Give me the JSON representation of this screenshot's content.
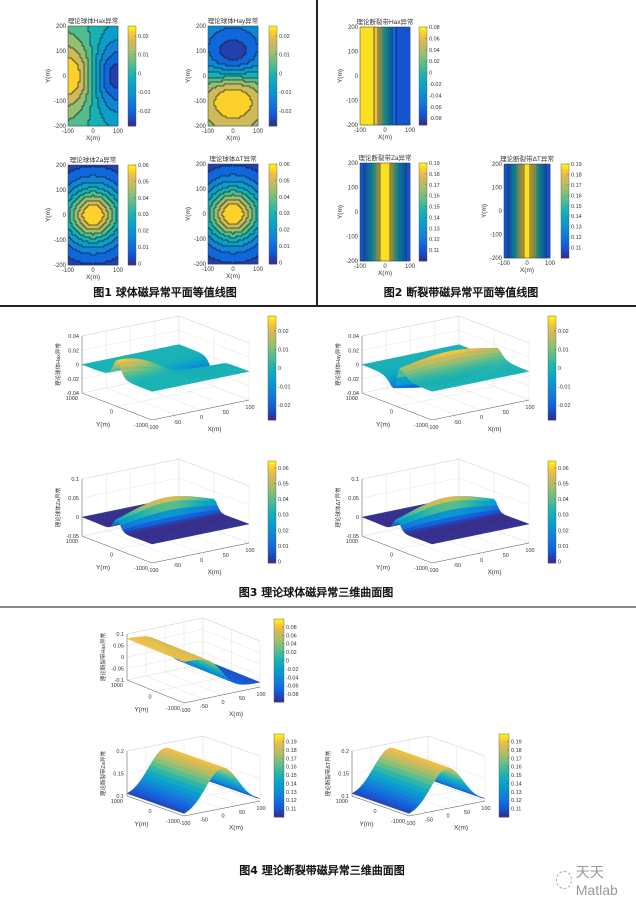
{
  "captions": {
    "fig1": "图1 球体磁异常平面等值线图",
    "fig2": "图2 断裂带磁异常平面等值线图",
    "fig3": "图3 理论球体磁异常三维曲面图",
    "fig4": "图4 理论断裂带磁异常三维曲面图"
  },
  "watermark": "天天Matlab",
  "chart_data": [
    {
      "id": "f1-hax",
      "type": "contour",
      "model": "sphere",
      "field": "Hax",
      "title": "理论球体Hax异常",
      "xlabel": "X(m)",
      "ylabel": "Y(m)",
      "xlim": [
        -100,
        100
      ],
      "ylim": [
        -200,
        200
      ],
      "xticks": [
        -100,
        0,
        100
      ],
      "yticks": [
        200,
        100,
        0,
        -100,
        -200
      ],
      "clim": [
        -0.028,
        0.0253
      ],
      "cticks": [
        0.02,
        0.01,
        0,
        -0.01,
        -0.02
      ]
    },
    {
      "id": "f1-hay",
      "type": "contour",
      "model": "sphere",
      "field": "Hay",
      "title": "理论球体Hay异常",
      "xlabel": "X(m)",
      "ylabel": "Y(m)",
      "xlim": [
        -100,
        100
      ],
      "ylim": [
        -200,
        200
      ],
      "xticks": [
        -100,
        0,
        100
      ],
      "yticks": [
        200,
        100,
        0,
        -100,
        -200
      ],
      "clim": [
        -0.028,
        0.0253
      ],
      "cticks": [
        0.02,
        0.01,
        0,
        -0.01,
        -0.02
      ]
    },
    {
      "id": "f1-za",
      "type": "contour",
      "model": "sphere",
      "field": "Za",
      "title": "理论球体Za异常",
      "xlabel": "X(m)",
      "ylabel": "Y(m)",
      "xlim": [
        -100,
        100
      ],
      "ylim": [
        -200,
        200
      ],
      "xticks": [
        -100,
        0,
        100
      ],
      "yticks": [
        200,
        100,
        0,
        -100,
        -200
      ],
      "clim": [
        -0.001,
        0.06
      ],
      "cticks": [
        0.06,
        0.05,
        0.04,
        0.03,
        0.02,
        0.01,
        0
      ]
    },
    {
      "id": "f1-dt",
      "type": "contour",
      "model": "sphere",
      "field": "dT",
      "title": "理论球体ΔT异常",
      "xlabel": "X(m)",
      "ylabel": "Y(m)",
      "xlim": [
        -100,
        100
      ],
      "ylim": [
        -200,
        200
      ],
      "xticks": [
        -100,
        0,
        100
      ],
      "yticks": [
        200,
        100,
        0,
        -100,
        -200
      ],
      "clim": [
        -0.001,
        0.06
      ],
      "cticks": [
        0.06,
        0.05,
        0.04,
        0.03,
        0.02,
        0.01,
        0
      ]
    },
    {
      "id": "f2-hax",
      "type": "contour",
      "model": "fault",
      "field": "Hax",
      "title": "理论断裂带Hax异常",
      "xlabel": "X(m)",
      "ylabel": "Y(m)",
      "xlim": [
        -100,
        100
      ],
      "ylim": [
        -200,
        200
      ],
      "xticks": [
        -100,
        0,
        100
      ],
      "yticks": [
        200,
        100,
        0,
        -100,
        -200
      ],
      "clim": [
        -0.092,
        0.08
      ],
      "cticks": [
        0.08,
        0.06,
        0.04,
        0.02,
        0,
        -0.02,
        -0.04,
        -0.06,
        -0.08
      ]
    },
    {
      "id": "f2-za",
      "type": "contour",
      "model": "fault",
      "field": "Za",
      "title": "理论断裂带Za异常",
      "xlabel": "X(m)",
      "ylabel": "Y(m)",
      "xlim": [
        -100,
        100
      ],
      "ylim": [
        -200,
        200
      ],
      "xticks": [
        -100,
        0,
        100
      ],
      "yticks": [
        200,
        100,
        0,
        -100,
        -200
      ],
      "clim": [
        0.1,
        0.19
      ],
      "cticks": [
        0.19,
        0.18,
        0.17,
        0.16,
        0.15,
        0.14,
        0.13,
        0.12,
        0.11
      ]
    },
    {
      "id": "f2-dt",
      "type": "contour",
      "model": "fault",
      "field": "dT",
      "title": "理论断裂带ΔT异常",
      "xlabel": "X(m)",
      "ylabel": "Y(m)",
      "xlim": [
        -100,
        100
      ],
      "ylim": [
        -200,
        200
      ],
      "xticks": [
        -100,
        0,
        100
      ],
      "yticks": [
        200,
        100,
        0,
        -100,
        -200
      ],
      "clim": [
        0.1,
        0.19
      ],
      "cticks": [
        0.19,
        0.18,
        0.17,
        0.16,
        0.15,
        0.14,
        0.13,
        0.12,
        0.11
      ]
    },
    {
      "id": "f3-hax",
      "type": "surface",
      "model": "sphere",
      "field": "Hax",
      "zlabel": "理论球体Hax异常",
      "xlabel": "X(m)",
      "ylabel": "Y(m)",
      "xlim": [
        -100,
        100
      ],
      "ylim": [
        -1000,
        1000
      ],
      "zlim": [
        -0.04,
        0.04
      ],
      "xticks": [
        -100,
        -50,
        0,
        50,
        100
      ],
      "yticks": [
        1000,
        0,
        -1000
      ],
      "zticks": [
        0.04,
        0.02,
        0,
        -0.02,
        -0.04
      ],
      "clim": [
        -0.028,
        0.028
      ],
      "cticks": [
        0.02,
        0.01,
        0,
        -0.01,
        -0.02
      ]
    },
    {
      "id": "f3-hay",
      "type": "surface",
      "model": "sphere",
      "field": "Hay",
      "zlabel": "理论球体Hay异常",
      "xlabel": "X(m)",
      "ylabel": "Y(m)",
      "xlim": [
        -100,
        100
      ],
      "ylim": [
        -1000,
        1000
      ],
      "zlim": [
        -0.04,
        0.04
      ],
      "xticks": [
        -100,
        -50,
        0,
        50,
        100
      ],
      "yticks": [
        1000,
        0,
        -1000
      ],
      "zticks": [
        0.04,
        0.02,
        0,
        -0.02,
        -0.04
      ],
      "clim": [
        -0.028,
        0.028
      ],
      "cticks": [
        0.02,
        0.01,
        0,
        -0.01,
        -0.02
      ]
    },
    {
      "id": "f3-za",
      "type": "surface",
      "model": "sphere",
      "field": "Za",
      "zlabel": "理论球体Za异常",
      "xlabel": "X(m)",
      "ylabel": "Y(m)",
      "xlim": [
        -100,
        100
      ],
      "ylim": [
        -1000,
        1000
      ],
      "zlim": [
        -0.05,
        0.1
      ],
      "xticks": [
        -100,
        -50,
        0,
        50,
        100
      ],
      "yticks": [
        1000,
        0,
        -1000
      ],
      "zticks": [
        0.1,
        0.05,
        0,
        -0.05
      ],
      "clim": [
        -0.001,
        0.0645
      ],
      "cticks": [
        0.06,
        0.05,
        0.04,
        0.03,
        0.02,
        0.01,
        0
      ]
    },
    {
      "id": "f3-dt",
      "type": "surface",
      "model": "sphere",
      "field": "dT",
      "zlabel": "理论球体ΔT异常",
      "xlabel": "X(m)",
      "ylabel": "Y(m)",
      "xlim": [
        -100,
        100
      ],
      "ylim": [
        -1000,
        1000
      ],
      "zlim": [
        -0.05,
        0.1
      ],
      "xticks": [
        -100,
        -50,
        0,
        50,
        100
      ],
      "yticks": [
        1000,
        0,
        -1000
      ],
      "zticks": [
        0.1,
        0.05,
        0,
        -0.05
      ],
      "clim": [
        -0.001,
        0.0645
      ],
      "cticks": [
        0.06,
        0.05,
        0.04,
        0.03,
        0.02,
        0.01,
        0
      ]
    },
    {
      "id": "f4-hax",
      "type": "surface",
      "model": "fault",
      "field": "Hax",
      "zlabel": "理论断裂带Hax异常",
      "xlabel": "X(m)",
      "ylabel": "Y(m)",
      "xlim": [
        -100,
        100
      ],
      "ylim": [
        -1000,
        1000
      ],
      "zlim": [
        -0.1,
        0.1
      ],
      "xticks": [
        -100,
        -50,
        0,
        50,
        100
      ],
      "yticks": [
        1000,
        0,
        -1000
      ],
      "zticks": [
        0.1,
        0.05,
        0,
        -0.05,
        -0.1
      ],
      "clim": [
        -0.099,
        0.099
      ],
      "cticks": [
        0.08,
        0.06,
        0.04,
        0.02,
        0,
        -0.02,
        -0.04,
        -0.06,
        -0.08
      ]
    },
    {
      "id": "f4-za",
      "type": "surface",
      "model": "fault",
      "field": "Za",
      "zlabel": "理论断裂带Za异常",
      "xlabel": "X(m)",
      "ylabel": "Y(m)",
      "xlim": [
        -100,
        100
      ],
      "ylim": [
        -1000,
        1000
      ],
      "zlim": [
        0.1,
        0.2
      ],
      "xticks": [
        -100,
        -50,
        0,
        50,
        100
      ],
      "yticks": [
        1000,
        0,
        -1000
      ],
      "zticks": [
        0.2,
        0.15,
        0.1
      ],
      "clim": [
        0.1,
        0.199
      ],
      "cticks": [
        0.19,
        0.18,
        0.17,
        0.16,
        0.15,
        0.14,
        0.13,
        0.12,
        0.11
      ]
    },
    {
      "id": "f4-dt",
      "type": "surface",
      "model": "fault",
      "field": "dT",
      "zlabel": "理论断裂带ΔT异常",
      "xlabel": "X(m)",
      "ylabel": "Y(m)",
      "xlim": [
        -100,
        100
      ],
      "ylim": [
        -1000,
        1000
      ],
      "zlim": [
        0.1,
        0.2
      ],
      "xticks": [
        -100,
        -50,
        0,
        50,
        100
      ],
      "yticks": [
        1000,
        0,
        -1000
      ],
      "zticks": [
        0.2,
        0.15,
        0.1
      ],
      "clim": [
        0.1,
        0.199
      ],
      "cticks": [
        0.19,
        0.18,
        0.17,
        0.16,
        0.15,
        0.14,
        0.13,
        0.12,
        0.11
      ]
    }
  ]
}
